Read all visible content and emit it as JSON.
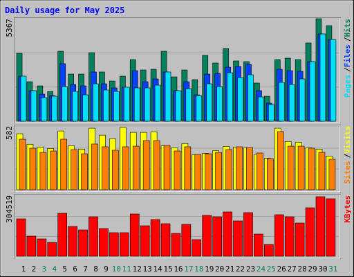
{
  "chart_data": [
    {
      "type": "bar",
      "title": "Daily usage for May 2025",
      "ylim": [
        0,
        5367
      ],
      "legend_separator": "/",
      "series": [
        {
          "name": "Hits",
          "color": "#00805c",
          "values": [
            3554,
            2067,
            1849,
            1559,
            3663,
            2466,
            2466,
            3590,
            2575,
            2103,
            2357,
            3227,
            2683,
            2720,
            3663,
            2321,
            2683,
            2176,
            3445,
            3046,
            3808,
            3155,
            3119,
            1995,
            1305,
            3227,
            3300,
            3227,
            4098,
            5367,
            5004
          ]
        },
        {
          "name": "Files",
          "color": "#0040ff",
          "values": [
            2357,
            1596,
            1414,
            1342,
            3010,
            1922,
            1849,
            2575,
            1958,
            1741,
            1777,
            2647,
            2067,
            2212,
            2575,
            1596,
            2067,
            1378,
            2466,
            2502,
            2829,
            2865,
            2974,
            1596,
            943,
            2720,
            2647,
            2611,
            3119,
            4569,
            4279
          ]
        },
        {
          "name": "Pages",
          "color": "#00e0ff",
          "values": [
            2357,
            1596,
            1233,
            1306,
            1813,
            1559,
            1378,
            1958,
            1632,
            1559,
            1777,
            1741,
            1741,
            1886,
            2575,
            1596,
            1704,
            1342,
            1958,
            1813,
            2538,
            2285,
            2430,
            1269,
            870,
            2031,
            1922,
            2212,
            3119,
            4569,
            4279
          ]
        }
      ]
    },
    {
      "type": "bar",
      "ylim": [
        0,
        582
      ],
      "legend_separator": "/",
      "series": [
        {
          "name": "Visits",
          "color": "#ffff00",
          "values": [
            523,
            425,
            399,
            386,
            549,
            412,
            379,
            575,
            510,
            477,
            582,
            536,
            536,
            542,
            412,
            392,
            431,
            327,
            340,
            366,
            405,
            399,
            392,
            333,
            294,
            575,
            451,
            444,
            392,
            379,
            314
          ]
        },
        {
          "name": "Sites",
          "color": "#ff8000",
          "values": [
            472,
            388,
            349,
            362,
            472,
            375,
            336,
            427,
            401,
            369,
            401,
            407,
            459,
            459,
            414,
            362,
            401,
            330,
            336,
            349,
            375,
            401,
            394,
            343,
            291,
            543,
            407,
            407,
            388,
            349,
            285
          ]
        }
      ]
    },
    {
      "type": "bar",
      "ylim": [
        0,
        304519
      ],
      "categories": [
        "1",
        "2",
        "3",
        "4",
        "5",
        "6",
        "7",
        "8",
        "9",
        "10",
        "11",
        "12",
        "13",
        "14",
        "15",
        "16",
        "17",
        "18",
        "19",
        "20",
        "21",
        "22",
        "23",
        "24",
        "25",
        "26",
        "27",
        "28",
        "29",
        "30",
        "31"
      ],
      "label_colors": [
        "#000000",
        "#000000",
        "#00805c",
        "#00805c",
        "#000000",
        "#000000",
        "#000000",
        "#000000",
        "#000000",
        "#00805c",
        "#00805c",
        "#000000",
        "#000000",
        "#000000",
        "#000000",
        "#000000",
        "#00805c",
        "#00805c",
        "#000000",
        "#000000",
        "#000000",
        "#000000",
        "#000000",
        "#00805c",
        "#00805c",
        "#000000",
        "#000000",
        "#000000",
        "#000000",
        "#000000",
        "#00805c"
      ],
      "series": [
        {
          "name": "KBytes",
          "color": "#ff0000",
          "values": [
            191210,
            102690,
            88526,
            70820,
            219540,
            152260,
            134560,
            201840,
            141640,
            120390,
            120390,
            216000,
            155800,
            187670,
            166430,
            116850,
            162880,
            84980,
            208920,
            201840,
            226620,
            180590,
            223080,
            113310,
            60200,
            212460,
            201840,
            169970,
            247870,
            304519,
            293900
          ]
        }
      ]
    }
  ]
}
